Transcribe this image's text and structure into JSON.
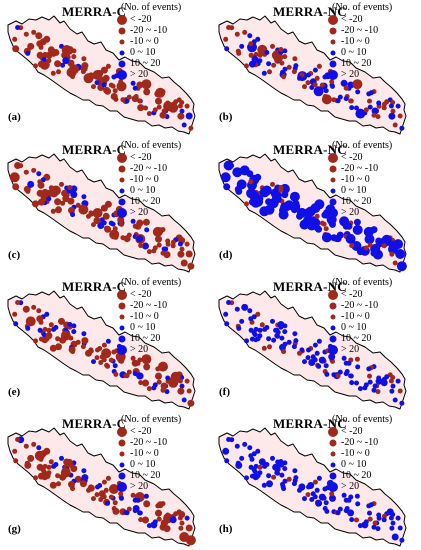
{
  "colors": {
    "negative": "#a0291b",
    "positive": "#1010e6",
    "nepal_fill": "#fde9ea",
    "border": "#000000"
  },
  "legend": {
    "title": "(No. of events)",
    "items": [
      {
        "label": "< -20",
        "class": "neg_large"
      },
      {
        "label": "-20 ~ -10",
        "class": "neg_mid"
      },
      {
        "label": "-10 ~ 0",
        "class": "neg_small"
      },
      {
        "label": "0 ~ 10",
        "class": "pos_small"
      },
      {
        "label": "10 ~ 20",
        "class": "pos_mid"
      },
      {
        "label": "> 20",
        "class": "pos_large"
      }
    ]
  },
  "panels": [
    {
      "letter": "(a)",
      "title": "MERRA-C"
    },
    {
      "letter": "(b)",
      "title": "MERRA-NC"
    },
    {
      "letter": "(c)",
      "title": "MERRA-C"
    },
    {
      "letter": "(d)",
      "title": "MERRA-NC"
    },
    {
      "letter": "(e)",
      "title": "MERRA-C"
    },
    {
      "letter": "(f)",
      "title": "MERRA-NC"
    },
    {
      "letter": "(g)",
      "title": "MERRA-C"
    },
    {
      "letter": "(h)",
      "title": "MERRA-NC"
    }
  ]
}
